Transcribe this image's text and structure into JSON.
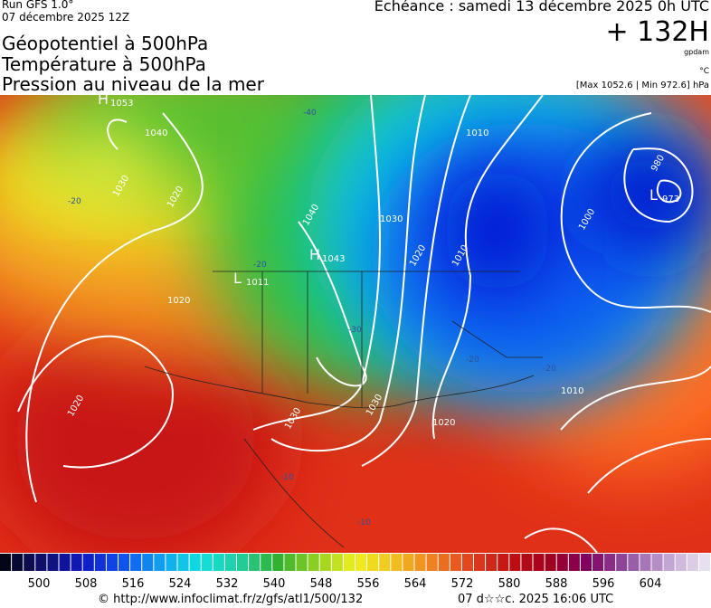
{
  "header": {
    "run": "Run GFS 1.0°",
    "date": "07 décembre 2025 12Z",
    "valid": "Echéance : samedi 13 décembre 2025 0h UTC",
    "lead": "+ 132H",
    "unit_gpdam": "gpdam",
    "unit_c": "°C",
    "range": "[Max 1052.6 | Min 972.6] hPa"
  },
  "titles": [
    "Géopotentiel à 500hPa",
    "Température à 500hPa",
    "Pression au niveau de la mer"
  ],
  "map": {
    "centers": [
      {
        "letter": "H",
        "value": "1053"
      },
      {
        "letter": "H",
        "value": "1043"
      },
      {
        "letter": "L",
        "value": "1011"
      },
      {
        "letter": "L",
        "value": "973"
      }
    ],
    "isobars": [
      "1040",
      "1030",
      "1020",
      "1020",
      "1020",
      "1040",
      "1030",
      "1020",
      "1010",
      "1010",
      "1000",
      "980",
      "1010",
      "1030",
      "1030",
      "1020"
    ],
    "isotherms": [
      "-40",
      "-20",
      "-20",
      "-30",
      "-20",
      "-20",
      "-10",
      "-10"
    ]
  },
  "colorbar": {
    "labels": [
      500,
      508,
      516,
      524,
      532,
      540,
      548,
      556,
      564,
      572,
      580,
      588,
      596,
      604
    ]
  },
  "footer": {
    "url": "© http://www.infoclimat.fr/z/gfs/atl1/500/132",
    "stamp": "07 d☆☆c. 2025 16:06 UTC"
  }
}
